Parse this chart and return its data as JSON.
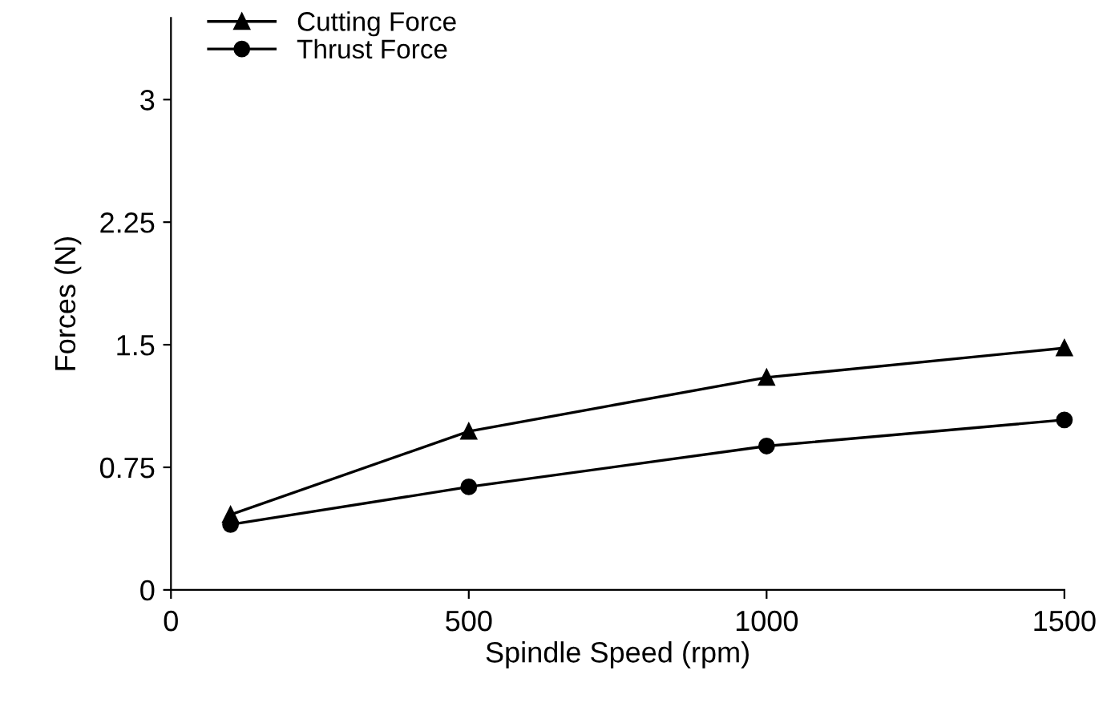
{
  "chart_data": {
    "type": "line",
    "xlabel": "Spindle Speed (rpm)",
    "ylabel": "Forces (N)",
    "x": [
      100,
      500,
      1000,
      1500
    ],
    "series": [
      {
        "name": "Cutting Force",
        "color": "#000000",
        "values": [
          0.46,
          0.97,
          1.3,
          1.48
        ],
        "marker": "triangle"
      },
      {
        "name": "Thrust Force",
        "color": "#000000",
        "values": [
          0.4,
          0.63,
          0.88,
          1.04
        ],
        "marker": "circle"
      }
    ],
    "xlim": [
      0,
      1500
    ],
    "xticks": [
      0,
      500,
      1000,
      1500
    ],
    "ylim": [
      0,
      3.5
    ],
    "yticks": [
      0,
      0.75,
      1.5,
      2.25,
      3
    ],
    "grid": false,
    "legend": "top left",
    "line_style": "solid"
  }
}
